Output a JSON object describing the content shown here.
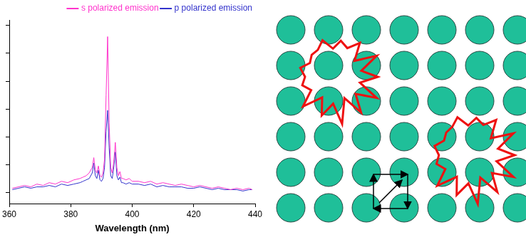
{
  "chart_data": {
    "type": "line",
    "x": [
      361,
      363,
      365,
      367,
      369,
      371,
      373,
      375,
      377,
      379,
      381,
      383,
      384,
      385,
      386,
      387,
      387.5,
      388,
      388.5,
      389,
      389.5,
      390,
      390.5,
      391,
      391.5,
      392,
      392.5,
      393,
      393.5,
      394,
      394.5,
      395,
      395.5,
      396,
      396.5,
      397,
      398,
      399,
      400,
      402,
      404,
      406,
      408,
      410,
      412,
      414,
      416,
      418,
      420,
      422,
      424,
      426,
      428,
      430,
      432,
      434,
      436,
      438,
      439
    ],
    "series": [
      {
        "name": "s polarized emission",
        "color": "#ff33cc",
        "values": [
          0.15,
          0.2,
          0.25,
          0.2,
          0.3,
          0.25,
          0.35,
          0.3,
          0.4,
          0.35,
          0.45,
          0.5,
          0.55,
          0.6,
          0.7,
          0.9,
          1.25,
          0.8,
          0.7,
          0.95,
          0.6,
          0.55,
          0.7,
          1.2,
          3.5,
          5.6,
          2.5,
          0.9,
          0.7,
          1.1,
          1.8,
          0.9,
          0.6,
          0.75,
          0.5,
          0.5,
          0.45,
          0.5,
          0.4,
          0.4,
          0.35,
          0.4,
          0.3,
          0.35,
          0.3,
          0.25,
          0.3,
          0.25,
          0.2,
          0.25,
          0.2,
          0.15,
          0.2,
          0.15,
          0.1,
          0.15,
          0.1,
          0.15,
          0.1
        ]
      },
      {
        "name": "p polarized emission",
        "color": "#3333cc",
        "values": [
          0.1,
          0.15,
          0.2,
          0.15,
          0.2,
          0.2,
          0.25,
          0.2,
          0.3,
          0.25,
          0.3,
          0.35,
          0.4,
          0.45,
          0.5,
          0.7,
          1.05,
          0.6,
          0.5,
          0.8,
          0.45,
          0.4,
          0.5,
          0.9,
          2.2,
          2.95,
          1.6,
          0.6,
          0.5,
          0.9,
          1.45,
          0.6,
          0.45,
          0.55,
          0.35,
          0.35,
          0.3,
          0.35,
          0.3,
          0.3,
          0.25,
          0.3,
          0.2,
          0.25,
          0.2,
          0.2,
          0.2,
          0.15,
          0.15,
          0.2,
          0.15,
          0.1,
          0.15,
          0.1,
          0.1,
          0.1,
          0.05,
          0.1,
          0.1
        ]
      }
    ],
    "x_label": "Wavelength (nm)",
    "xlim": [
      360,
      440
    ],
    "xticks": [
      360,
      380,
      400,
      420,
      440
    ],
    "ylim": [
      -0.4,
      6.2
    ],
    "yticks": [
      0,
      1,
      2,
      3,
      4,
      5,
      6
    ],
    "tick_labels": "x",
    "grid": false,
    "legend": "top right"
  }
}
